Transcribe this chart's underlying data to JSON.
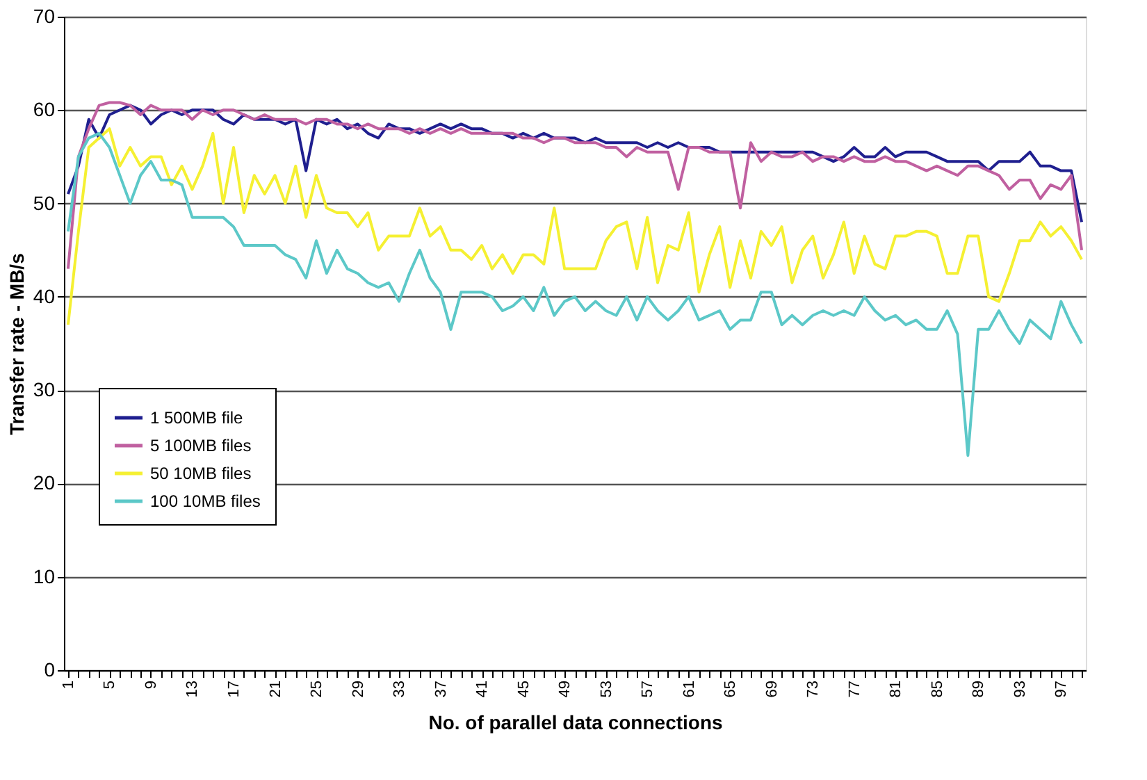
{
  "chart_data": {
    "type": "line",
    "xlabel": "No. of parallel data connections",
    "ylabel": "Transfer rate - MB/s",
    "categories": [
      "1",
      null,
      null,
      null,
      "5",
      null,
      null,
      null,
      "9",
      null,
      null,
      null,
      "13",
      null,
      null,
      null,
      "17",
      null,
      null,
      null,
      "21",
      null,
      null,
      null,
      "25",
      null,
      null,
      null,
      "29",
      null,
      null,
      null,
      "33",
      null,
      null,
      null,
      "37",
      null,
      null,
      null,
      "41",
      null,
      null,
      null,
      "45",
      null,
      null,
      null,
      "49",
      null,
      null,
      null,
      "53",
      null,
      null,
      null,
      "57",
      null,
      null,
      null,
      "61",
      null,
      null,
      null,
      "65",
      null,
      null,
      null,
      "69",
      null,
      null,
      null,
      "73",
      null,
      null,
      null,
      "77",
      null,
      null,
      null,
      "81",
      null,
      null,
      null,
      "85",
      null,
      null,
      null,
      "89",
      null,
      null,
      null,
      "93",
      null,
      null,
      null,
      "97",
      null,
      null
    ],
    "ylim": [
      0,
      70
    ],
    "yticks": [
      0,
      10,
      20,
      30,
      40,
      50,
      60,
      70
    ],
    "grid": "y",
    "legend": "left",
    "marker": "none",
    "line_style": "solid",
    "series": [
      {
        "name": "1 500MB file",
        "color": "#1f1f8f",
        "values": [
          51,
          54,
          59,
          57,
          59.5,
          60,
          60.5,
          60,
          58.5,
          59.5,
          60,
          59.5,
          60,
          60,
          60,
          59,
          58.5,
          59.5,
          59,
          59,
          59,
          58.5,
          59,
          53.5,
          59,
          58.5,
          59,
          58,
          58.5,
          57.5,
          57,
          58.5,
          58,
          58,
          57.5,
          58,
          58.5,
          58,
          58.5,
          58,
          58,
          57.5,
          57.5,
          57,
          57.5,
          57,
          57.5,
          57,
          57,
          57,
          56.5,
          57,
          56.5,
          56.5,
          56.5,
          56.5,
          56,
          56.5,
          56,
          56.5,
          56,
          56,
          56,
          55.5,
          55.5,
          55.5,
          55.5,
          55.5,
          55.5,
          55.5,
          55.5,
          55.5,
          55.5,
          55,
          54.5,
          55,
          56,
          55,
          55,
          56,
          55,
          55.5,
          55.5,
          55.5,
          55,
          54.5,
          54.5,
          54.5,
          54.5,
          53.5,
          54.5,
          54.5,
          54.5,
          55.5,
          54,
          54,
          53.5,
          53.5,
          48
        ]
      },
      {
        "name": "5 100MB files",
        "color": "#c060a0",
        "values": [
          43,
          55,
          58,
          60.5,
          60.8,
          60.8,
          60.5,
          59.5,
          60.5,
          60,
          60,
          60,
          59,
          60,
          59.5,
          60,
          60,
          59.5,
          59,
          59.5,
          59,
          59,
          59,
          58.5,
          59,
          59,
          58.5,
          58.5,
          58,
          58.5,
          58,
          58,
          58,
          57.5,
          58,
          57.5,
          58,
          57.5,
          58,
          57.5,
          57.5,
          57.5,
          57.5,
          57.5,
          57,
          57,
          56.5,
          57,
          57,
          56.5,
          56.5,
          56.5,
          56,
          56,
          55,
          56,
          55.5,
          55.5,
          55.5,
          51.5,
          56,
          56,
          55.5,
          55.5,
          55.5,
          49.5,
          56.5,
          54.5,
          55.5,
          55,
          55,
          55.5,
          54.5,
          55,
          55,
          54.5,
          55,
          54.5,
          54.5,
          55,
          54.5,
          54.5,
          54,
          53.5,
          54,
          53.5,
          53,
          54,
          54,
          53.5,
          53,
          51.5,
          52.5,
          52.5,
          50.5,
          52,
          51.5,
          53,
          45
        ]
      },
      {
        "name": "50 10MB files",
        "color": "#f5f032",
        "values": [
          37,
          47,
          56,
          57,
          58,
          54,
          56,
          54,
          55,
          55,
          52,
          54,
          51.5,
          54,
          57.5,
          50,
          56,
          49,
          53,
          51,
          53,
          50,
          54,
          48.5,
          53,
          49.5,
          49,
          49,
          47.5,
          49,
          45,
          46.5,
          46.5,
          46.5,
          49.5,
          46.5,
          47.5,
          45,
          45,
          44,
          45.5,
          43,
          44.5,
          42.5,
          44.5,
          44.5,
          43.5,
          49.5,
          43,
          43,
          43,
          43,
          46,
          47.5,
          48,
          43,
          48.5,
          41.5,
          45.5,
          45,
          49,
          40.5,
          44.5,
          47.5,
          41,
          46,
          42,
          47,
          45.5,
          47.5,
          41.5,
          45,
          46.5,
          42,
          44.5,
          48,
          42.5,
          46.5,
          43.5,
          43,
          46.5,
          46.5,
          47,
          47,
          46.5,
          42.5,
          42.5,
          46.5,
          46.5,
          40,
          39.5,
          42.5,
          46,
          46,
          48,
          46.5,
          47.5,
          46,
          44
        ]
      },
      {
        "name": "100 10MB files",
        "color": "#5cc8c8",
        "values": [
          47,
          55,
          57,
          57.5,
          56,
          53,
          50,
          53,
          54.5,
          52.5,
          52.5,
          52,
          48.5,
          48.5,
          48.5,
          48.5,
          47.5,
          45.5,
          45.5,
          45.5,
          45.5,
          44.5,
          44,
          42,
          46,
          42.5,
          45,
          43,
          42.5,
          41.5,
          41,
          41.5,
          39.5,
          42.5,
          45,
          42,
          40.5,
          36.5,
          40.5,
          40.5,
          40.5,
          40,
          38.5,
          39,
          40,
          38.5,
          41,
          38,
          39.5,
          40,
          38.5,
          39.5,
          38.5,
          38,
          40,
          37.5,
          40,
          38.5,
          37.5,
          38.5,
          40,
          37.5,
          38,
          38.5,
          36.5,
          37.5,
          37.5,
          40.5,
          40.5,
          37,
          38,
          37,
          38,
          38.5,
          38,
          38.5,
          38,
          40,
          38.5,
          37.5,
          38,
          37,
          37.5,
          36.5,
          36.5,
          38.5,
          36,
          23,
          36.5,
          36.5,
          38.5,
          36.5,
          35,
          37.5,
          36.5,
          35.5,
          39.5,
          37,
          35
        ]
      }
    ]
  }
}
